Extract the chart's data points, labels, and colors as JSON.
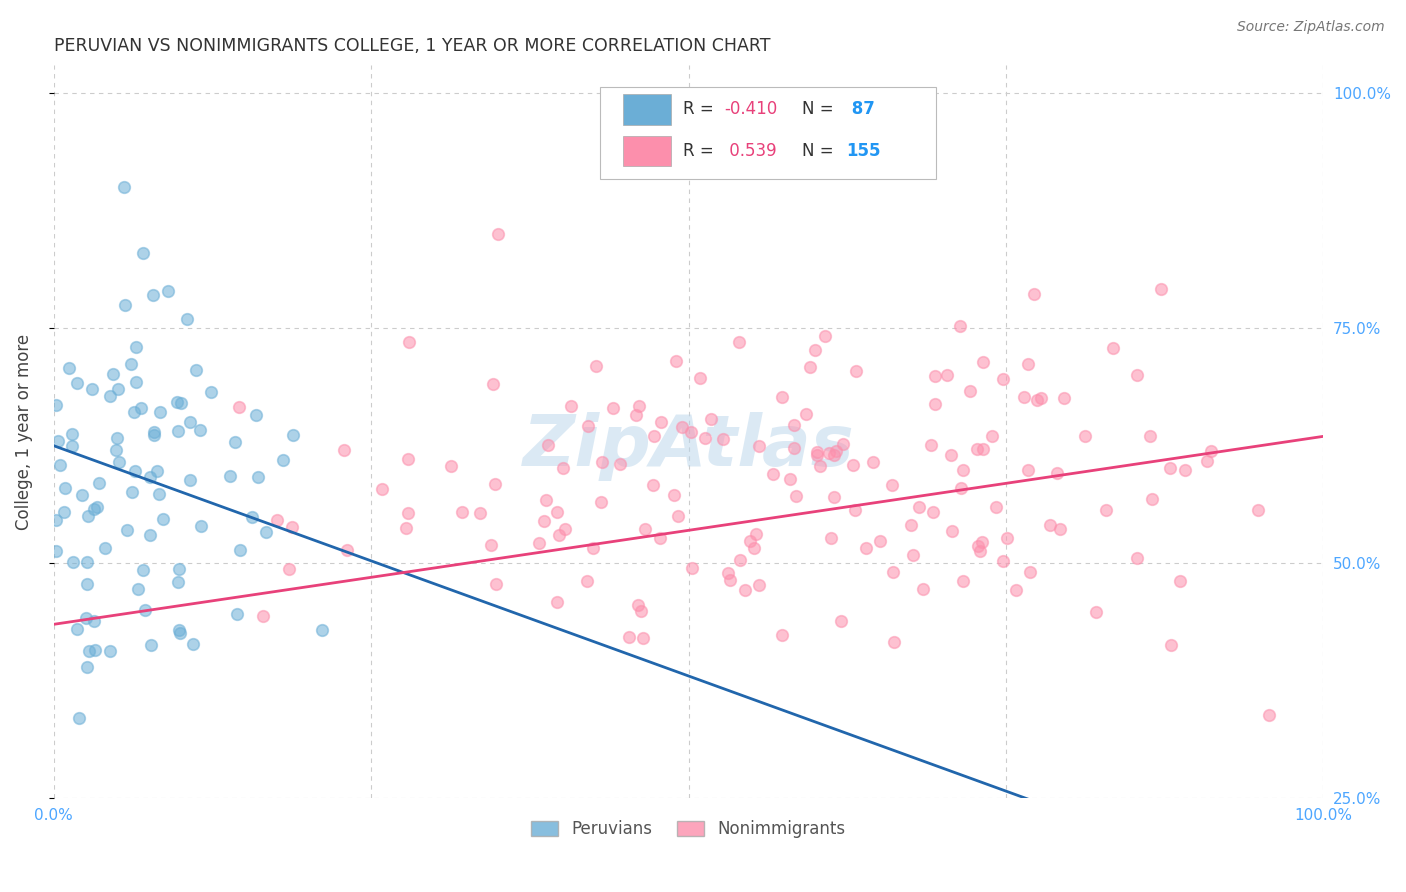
{
  "title": "PERUVIAN VS NONIMMIGRANTS COLLEGE, 1 YEAR OR MORE CORRELATION CHART",
  "source": "Source: ZipAtlas.com",
  "ylabel": "College, 1 year or more",
  "xlim": [
    0.0,
    1.0
  ],
  "ylim": [
    0.27,
    1.03
  ],
  "blue_color": "#6baed6",
  "pink_color": "#fc8fac",
  "blue_line_color": "#2166ac",
  "pink_line_color": "#e8417a",
  "watermark_color": "#b8d4ea",
  "blue_R": -0.41,
  "blue_N": 87,
  "pink_R": 0.539,
  "pink_N": 155,
  "grid_color": "#cccccc",
  "tick_color": "#4da6ff",
  "background_color": "#ffffff",
  "blue_line_start_y": 0.625,
  "blue_line_end_y": 0.135,
  "blue_line_solid_end_x": 0.83,
  "pink_line_start_y": 0.435,
  "pink_line_end_y": 0.635,
  "right_y_ticks": [
    0.25,
    0.5,
    0.75,
    1.0
  ],
  "right_y_labels": [
    "25.0%",
    "50.0%",
    "75.0%",
    "100.0%"
  ]
}
